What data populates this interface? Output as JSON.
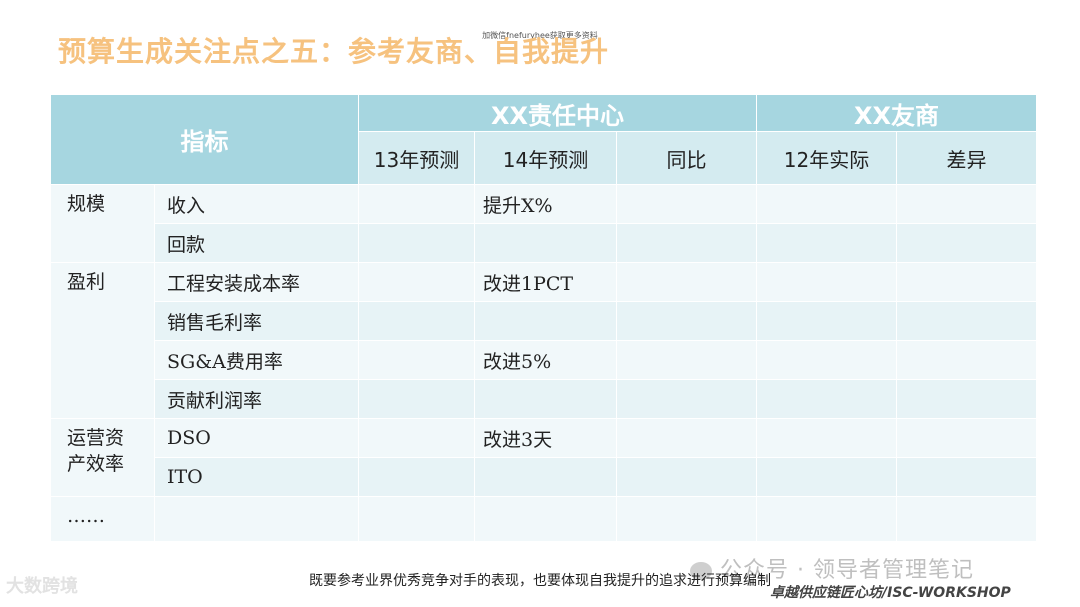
{
  "top_note": "加微信fnefuryhee获取更多资料",
  "title": "预算生成关注点之五：参考友商、自我提升",
  "table": {
    "index_header": "指标",
    "group1": "XX责任中心",
    "group2": "XX友商",
    "cols": [
      "13年预测",
      "14年预测",
      "同比",
      "12年实际",
      "差异"
    ],
    "rows": [
      {
        "cat": "规模",
        "ind": "收入",
        "v14": "提升X%"
      },
      {
        "cat": "",
        "ind": "回款",
        "v14": ""
      },
      {
        "cat": "盈利",
        "ind": "工程安装成本率",
        "v14": "改进1PCT"
      },
      {
        "cat": "",
        "ind": "销售毛利率",
        "v14": ""
      },
      {
        "cat": "",
        "ind": "SG&A费用率",
        "v14": "改进5%"
      },
      {
        "cat": "",
        "ind": "贡献利润率",
        "v14": ""
      },
      {
        "cat": "运营资产效率",
        "ind": "DSO",
        "v14": "改进3天"
      },
      {
        "cat": "",
        "ind": "ITO",
        "v14": ""
      },
      {
        "cat": "……",
        "ind": "",
        "v14": ""
      }
    ]
  },
  "caption": "既要参考业界优秀竞争对手的表现，也要体现自我提升的追求进行预算编制",
  "watermark_left": "大数跨境",
  "watermark_right": "公众号 · 领导者管理笔记",
  "footer_brand": "卓越供应链匠心坊/ISC-WORKSHOP"
}
